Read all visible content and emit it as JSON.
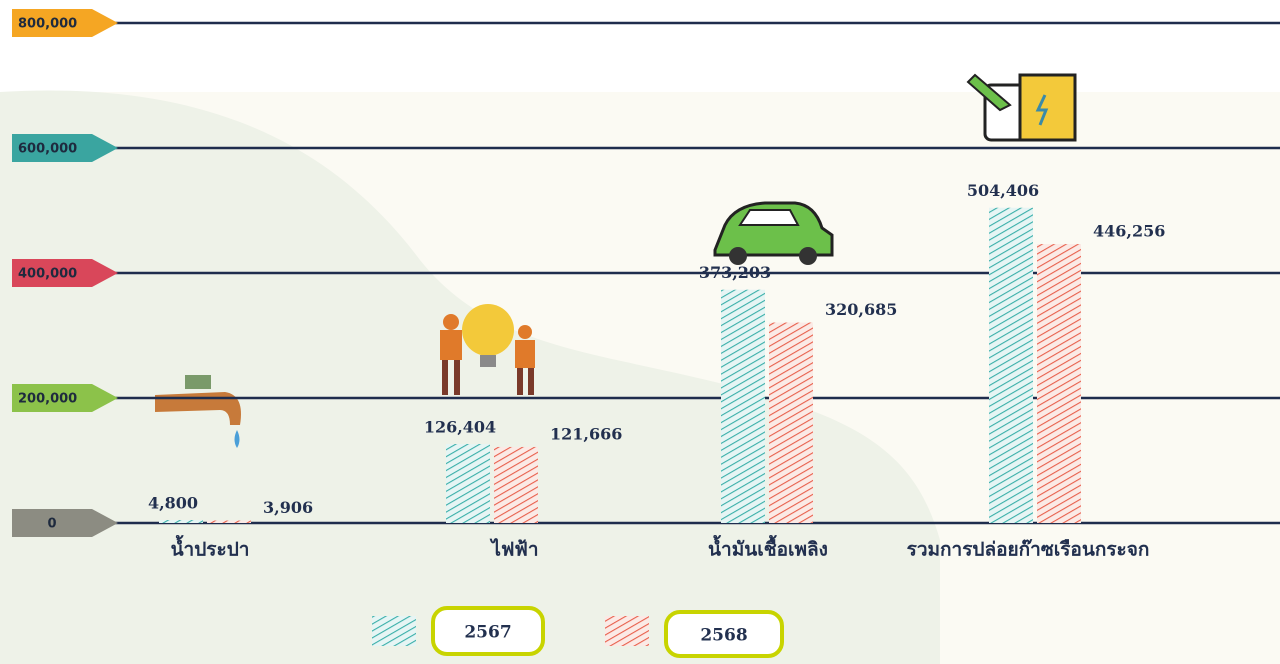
{
  "chart_data": {
    "type": "bar",
    "categories": [
      "น้ำประปา",
      "ไฟฟ้า",
      "น้ำมันเชื้อเพลิง",
      "รวมการปล่อยก๊าซเรือนกระจก"
    ],
    "series": [
      {
        "name": "2567",
        "color": "#3aafa9",
        "values": [
          4800,
          126404,
          373203,
          504406
        ],
        "value_labels": [
          "4,800",
          "126,404",
          "373,203",
          "504,406"
        ]
      },
      {
        "name": "2568",
        "color": "#e8604c",
        "values": [
          3906,
          121666,
          320685,
          446256
        ],
        "value_labels": [
          "3,906",
          "121,666",
          "320,685",
          "446,256"
        ]
      }
    ],
    "ylim": [
      0,
      800000
    ],
    "yticks": [
      {
        "value": 0,
        "label": "0"
      },
      {
        "value": 200000,
        "label": "200,000"
      },
      {
        "value": 400000,
        "label": "400,000"
      },
      {
        "value": 600000,
        "label": "600,000"
      },
      {
        "value": 800000,
        "label": "800,000"
      }
    ],
    "ytick_colors": [
      "#8c8c82",
      "#8cc24a",
      "#d9475a",
      "#3aa5a0",
      "#f5a623"
    ],
    "grid": true
  }
}
